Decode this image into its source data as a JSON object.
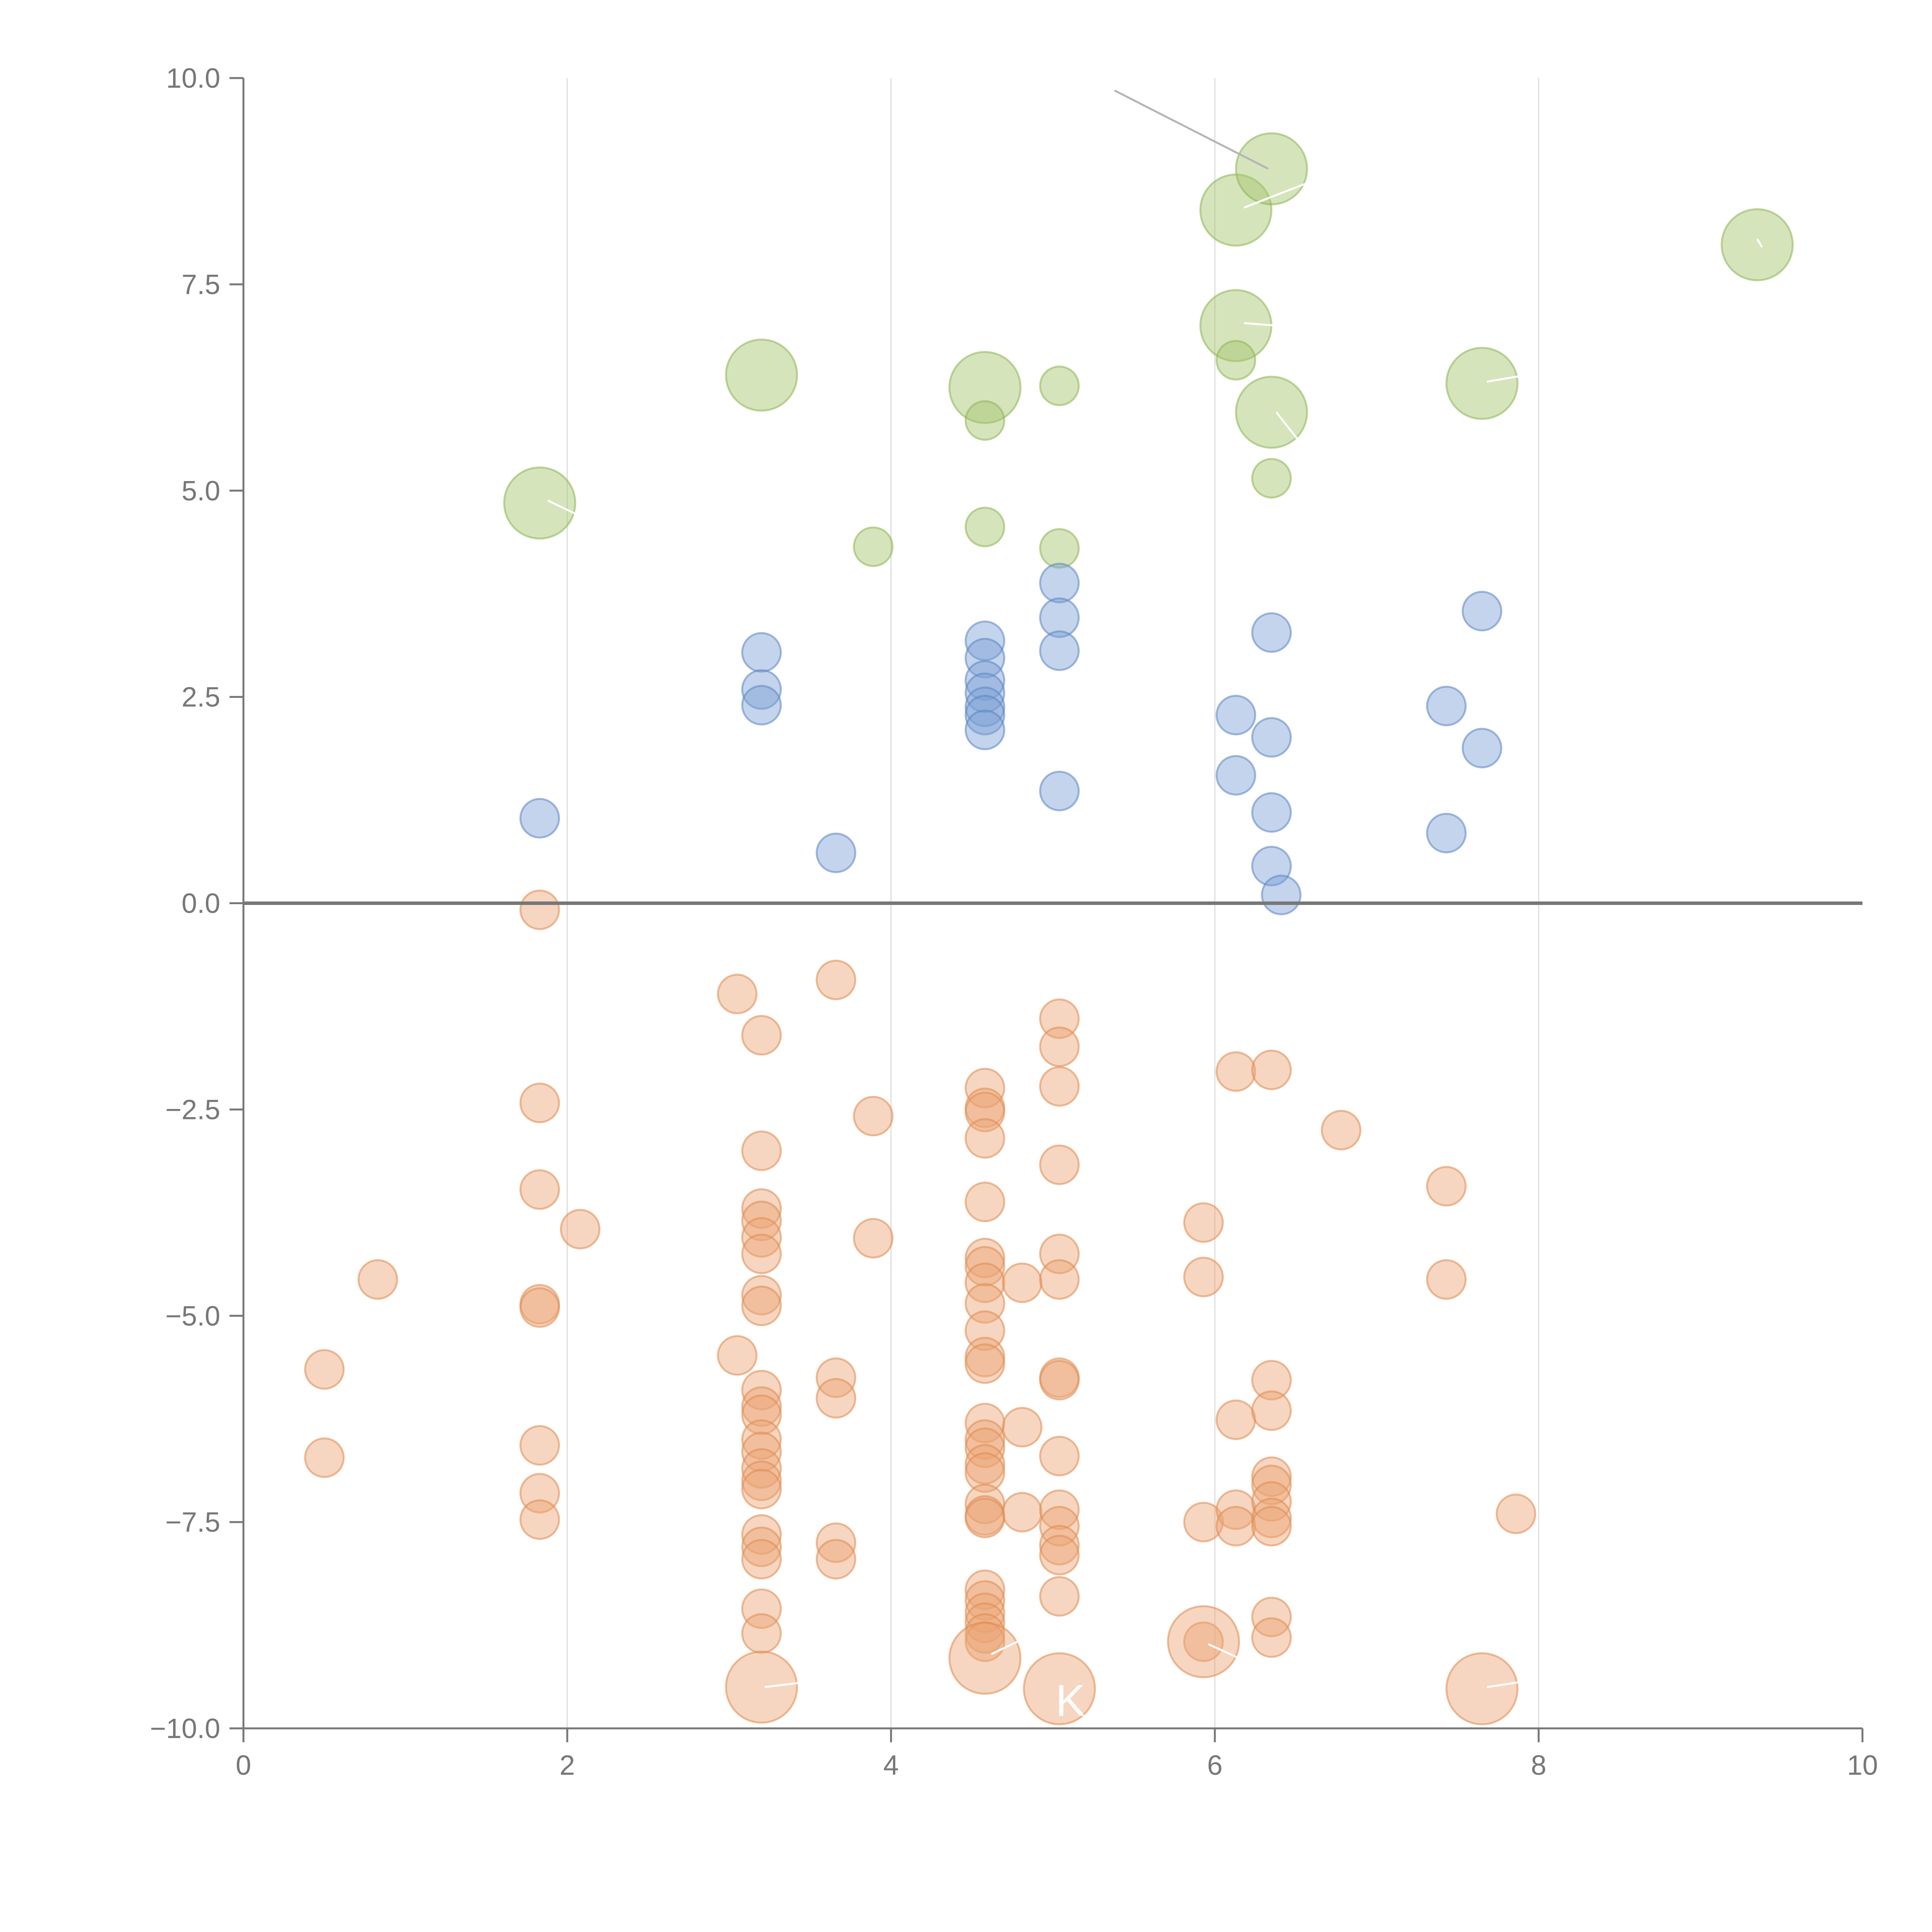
{
  "chart_data": {
    "type": "scatter",
    "title": "",
    "xlabel": "",
    "ylabel": "",
    "xlim": [
      0,
      10
    ],
    "ylim": [
      -10,
      10
    ],
    "x_ticks": [
      0,
      2,
      4,
      6,
      8,
      10
    ],
    "y_ticks": [
      -10,
      -7.5,
      -5,
      -2.5,
      0,
      2.5,
      5,
      7.5,
      10
    ],
    "x_tick_labels": [
      "0",
      "2",
      "4",
      "6",
      "8",
      "10"
    ],
    "y_tick_labels": [
      "−10.0",
      "−7.5",
      "−5.0",
      "−2.5",
      "0.0",
      "2.5",
      "5.0",
      "7.5",
      "10.0"
    ],
    "vertical_grid": true,
    "zero_line": true,
    "colors": {
      "positive_fill": "#a3c46a",
      "positive_stroke": "#8db454",
      "mid_fill": "#7b9fd4",
      "mid_stroke": "#5b83c4",
      "negative_fill": "#eba574",
      "negative_stroke": "#df8a50",
      "axis": "#777777",
      "grid": "#dddddd",
      "label_text": "#ffffff",
      "leader_light": "#ffffff",
      "leader_dark": "#b4b4b4"
    },
    "series": [
      {
        "name": "positive-large",
        "points": [
          {
            "x": 1.83,
            "y": 4.85,
            "size": "large"
          },
          {
            "x": 3.2,
            "y": 6.4,
            "size": "large"
          },
          {
            "x": 4.58,
            "y": 6.25,
            "size": "large"
          },
          {
            "x": 6.13,
            "y": 8.4,
            "size": "large"
          },
          {
            "x": 6.35,
            "y": 8.9,
            "size": "large"
          },
          {
            "x": 6.13,
            "y": 7.0,
            "size": "large"
          },
          {
            "x": 6.35,
            "y": 5.95,
            "size": "large"
          },
          {
            "x": 7.65,
            "y": 6.3,
            "size": "large"
          },
          {
            "x": 9.35,
            "y": 7.98,
            "size": "large"
          },
          {
            "x": 3.89,
            "y": 4.32,
            "size": "small"
          },
          {
            "x": 4.58,
            "y": 5.85,
            "size": "small"
          },
          {
            "x": 4.58,
            "y": 4.56,
            "size": "small"
          },
          {
            "x": 5.04,
            "y": 6.27,
            "size": "small"
          },
          {
            "x": 5.04,
            "y": 4.3,
            "size": "small"
          },
          {
            "x": 6.13,
            "y": 6.58,
            "size": "small"
          },
          {
            "x": 6.35,
            "y": 5.15,
            "size": "small"
          }
        ]
      },
      {
        "name": "mid-range",
        "points": [
          {
            "x": 1.83,
            "y": 1.03
          },
          {
            "x": 3.2,
            "y": 3.04
          },
          {
            "x": 3.2,
            "y": 2.59
          },
          {
            "x": 3.2,
            "y": 2.4
          },
          {
            "x": 3.66,
            "y": 0.61
          },
          {
            "x": 4.58,
            "y": 3.18
          },
          {
            "x": 4.58,
            "y": 2.97
          },
          {
            "x": 4.58,
            "y": 2.7
          },
          {
            "x": 4.58,
            "y": 2.55
          },
          {
            "x": 4.58,
            "y": 2.38
          },
          {
            "x": 4.58,
            "y": 2.28
          },
          {
            "x": 4.58,
            "y": 2.1
          },
          {
            "x": 5.04,
            "y": 3.88
          },
          {
            "x": 5.04,
            "y": 3.46
          },
          {
            "x": 5.04,
            "y": 3.06
          },
          {
            "x": 5.04,
            "y": 1.36
          },
          {
            "x": 6.13,
            "y": 2.28
          },
          {
            "x": 6.13,
            "y": 1.55
          },
          {
            "x": 6.35,
            "y": 3.28
          },
          {
            "x": 6.35,
            "y": 2.01
          },
          {
            "x": 6.35,
            "y": 1.1
          },
          {
            "x": 6.35,
            "y": 0.45
          },
          {
            "x": 6.41,
            "y": 0.1
          },
          {
            "x": 7.43,
            "y": 2.39
          },
          {
            "x": 7.43,
            "y": 0.85
          },
          {
            "x": 7.65,
            "y": 3.54
          },
          {
            "x": 7.65,
            "y": 1.88
          }
        ]
      },
      {
        "name": "negative",
        "points": [
          {
            "x": 1.83,
            "y": -0.08
          },
          {
            "x": 3.05,
            "y": -1.1
          },
          {
            "x": 3.66,
            "y": -0.93
          },
          {
            "x": 3.2,
            "y": -1.6
          },
          {
            "x": 1.83,
            "y": -2.42
          },
          {
            "x": 3.89,
            "y": -2.58
          },
          {
            "x": 3.2,
            "y": -3.0
          },
          {
            "x": 1.83,
            "y": -3.47
          },
          {
            "x": 2.08,
            "y": -3.95
          },
          {
            "x": 0.83,
            "y": -4.56
          },
          {
            "x": 1.83,
            "y": -4.86
          },
          {
            "x": 1.83,
            "y": -4.9
          },
          {
            "x": 0.5,
            "y": -5.65
          },
          {
            "x": 0.5,
            "y": -6.72
          },
          {
            "x": 1.83,
            "y": -6.57
          },
          {
            "x": 1.83,
            "y": -7.15
          },
          {
            "x": 1.83,
            "y": -7.47
          },
          {
            "x": 3.2,
            "y": -3.7
          },
          {
            "x": 3.2,
            "y": -3.85
          },
          {
            "x": 3.2,
            "y": -4.05
          },
          {
            "x": 3.2,
            "y": -4.25
          },
          {
            "x": 3.2,
            "y": -4.75
          },
          {
            "x": 3.2,
            "y": -4.88
          },
          {
            "x": 3.05,
            "y": -5.48
          },
          {
            "x": 3.2,
            "y": -5.9
          },
          {
            "x": 3.2,
            "y": -6.1
          },
          {
            "x": 3.2,
            "y": -6.2
          },
          {
            "x": 3.2,
            "y": -6.5
          },
          {
            "x": 3.2,
            "y": -6.65
          },
          {
            "x": 3.2,
            "y": -6.85
          },
          {
            "x": 3.2,
            "y": -7.0
          },
          {
            "x": 3.2,
            "y": -7.1
          },
          {
            "x": 3.2,
            "y": -7.65
          },
          {
            "x": 3.2,
            "y": -7.8
          },
          {
            "x": 3.2,
            "y": -7.95
          },
          {
            "x": 3.2,
            "y": -8.55
          },
          {
            "x": 3.2,
            "y": -8.85
          },
          {
            "x": 3.66,
            "y": -5.75
          },
          {
            "x": 3.66,
            "y": -6.0
          },
          {
            "x": 3.66,
            "y": -7.75
          },
          {
            "x": 3.66,
            "y": -7.95
          },
          {
            "x": 3.89,
            "y": -4.06
          },
          {
            "x": 4.58,
            "y": -2.24
          },
          {
            "x": 4.58,
            "y": -2.48
          },
          {
            "x": 4.58,
            "y": -2.53
          },
          {
            "x": 4.58,
            "y": -2.85
          },
          {
            "x": 4.58,
            "y": -3.62
          },
          {
            "x": 4.58,
            "y": -4.3
          },
          {
            "x": 4.58,
            "y": -4.4
          },
          {
            "x": 4.58,
            "y": -4.6
          },
          {
            "x": 4.58,
            "y": -4.85
          },
          {
            "x": 4.58,
            "y": -5.18
          },
          {
            "x": 4.58,
            "y": -5.5
          },
          {
            "x": 4.58,
            "y": -5.58
          },
          {
            "x": 4.58,
            "y": -6.3
          },
          {
            "x": 4.58,
            "y": -6.5
          },
          {
            "x": 4.58,
            "y": -6.6
          },
          {
            "x": 4.58,
            "y": -6.8
          },
          {
            "x": 4.58,
            "y": -6.9
          },
          {
            "x": 4.58,
            "y": -7.28
          },
          {
            "x": 4.58,
            "y": -7.42
          },
          {
            "x": 4.58,
            "y": -7.45
          },
          {
            "x": 4.58,
            "y": -8.32
          },
          {
            "x": 4.58,
            "y": -8.45
          },
          {
            "x": 4.58,
            "y": -8.6
          },
          {
            "x": 4.58,
            "y": -8.72
          },
          {
            "x": 4.58,
            "y": -8.85
          },
          {
            "x": 4.58,
            "y": -8.95
          },
          {
            "x": 4.81,
            "y": -4.6
          },
          {
            "x": 4.81,
            "y": -6.35
          },
          {
            "x": 4.81,
            "y": -7.38
          },
          {
            "x": 5.04,
            "y": -1.4
          },
          {
            "x": 5.04,
            "y": -1.74
          },
          {
            "x": 5.04,
            "y": -2.22
          },
          {
            "x": 5.04,
            "y": -3.17
          },
          {
            "x": 5.04,
            "y": -4.25
          },
          {
            "x": 5.04,
            "y": -4.56
          },
          {
            "x": 5.04,
            "y": -5.75
          },
          {
            "x": 5.04,
            "y": -5.78
          },
          {
            "x": 5.04,
            "y": -6.7
          },
          {
            "x": 5.04,
            "y": -7.35
          },
          {
            "x": 5.04,
            "y": -7.55
          },
          {
            "x": 5.04,
            "y": -7.78
          },
          {
            "x": 5.04,
            "y": -7.9
          },
          {
            "x": 5.04,
            "y": -8.4
          },
          {
            "x": 5.93,
            "y": -3.87
          },
          {
            "x": 5.93,
            "y": -4.53
          },
          {
            "x": 5.93,
            "y": -7.5
          },
          {
            "x": 5.93,
            "y": -8.95
          },
          {
            "x": 6.13,
            "y": -2.04
          },
          {
            "x": 6.13,
            "y": -6.26
          },
          {
            "x": 6.13,
            "y": -7.35
          },
          {
            "x": 6.13,
            "y": -7.55
          },
          {
            "x": 6.35,
            "y": -2.02
          },
          {
            "x": 6.35,
            "y": -5.78
          },
          {
            "x": 6.35,
            "y": -6.15
          },
          {
            "x": 6.35,
            "y": -6.95
          },
          {
            "x": 6.35,
            "y": -7.05
          },
          {
            "x": 6.35,
            "y": -7.25
          },
          {
            "x": 6.35,
            "y": -7.45
          },
          {
            "x": 6.35,
            "y": -7.55
          },
          {
            "x": 6.35,
            "y": -8.65
          },
          {
            "x": 6.35,
            "y": -8.9
          },
          {
            "x": 6.78,
            "y": -2.75
          },
          {
            "x": 7.43,
            "y": -3.43
          },
          {
            "x": 7.43,
            "y": -4.56
          },
          {
            "x": 7.86,
            "y": -7.4
          }
        ]
      },
      {
        "name": "negative-large",
        "points": [
          {
            "x": 3.2,
            "y": -9.5
          },
          {
            "x": 4.58,
            "y": -9.15
          },
          {
            "x": 5.04,
            "y": -9.52
          },
          {
            "x": 5.93,
            "y": -8.95
          },
          {
            "x": 7.65,
            "y": -9.52
          }
        ]
      }
    ],
    "annotations": [
      {
        "text": "K",
        "x": 5.04,
        "y": -9.52
      }
    ]
  }
}
